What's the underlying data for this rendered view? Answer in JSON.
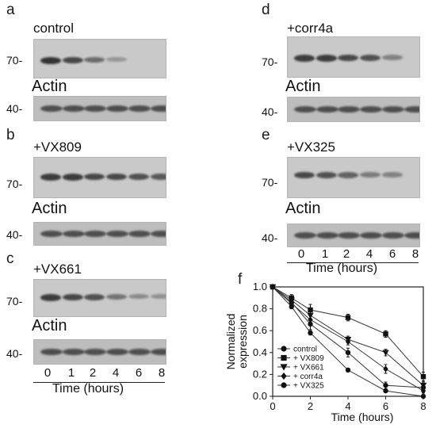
{
  "panels": {
    "a": {
      "letter": "a",
      "label": "control",
      "bands": [
        0.95,
        0.85,
        0.65,
        0.35,
        0.0,
        0.0
      ]
    },
    "b": {
      "letter": "b",
      "label": "+VX809",
      "bands": [
        0.9,
        0.9,
        0.85,
        0.85,
        0.8,
        0.75
      ]
    },
    "c": {
      "letter": "c",
      "label": "+VX661",
      "bands": [
        0.9,
        0.85,
        0.8,
        0.6,
        0.45,
        0.4
      ]
    },
    "d": {
      "letter": "d",
      "label": "+corr4a",
      "bands": [
        0.9,
        0.9,
        0.85,
        0.8,
        0.5,
        0.0
      ]
    },
    "e": {
      "letter": "e",
      "label": "+VX325",
      "bands": [
        0.85,
        0.8,
        0.7,
        0.55,
        0.5,
        0.0
      ]
    }
  },
  "actin_label": "Actin",
  "mw_70": "70-",
  "mw_40": "40-",
  "time_ticks": [
    "0",
    "1",
    "2",
    "4",
    "6",
    "8"
  ],
  "time_axis_label": "Time (hours)",
  "chart_letter": "f",
  "chart_data": {
    "type": "line",
    "xlabel": "Time (hours)",
    "ylabel": "Normalized expression",
    "xlim": [
      0,
      8
    ],
    "ylim": [
      0,
      1.0
    ],
    "x": [
      0,
      1,
      2,
      4,
      6,
      8
    ],
    "xticks": [
      "0",
      "2",
      "4",
      "6",
      "8"
    ],
    "yticks": [
      "0.0",
      "0.2",
      "0.4",
      "0.6",
      "0.8",
      "1.0"
    ],
    "legend_position": "bottom-left",
    "series": [
      {
        "name": "control",
        "marker": "circle",
        "values": [
          1.0,
          0.82,
          0.58,
          0.24,
          0.05,
          0.0
        ],
        "err": [
          0.0,
          0.02,
          0.02,
          0.01,
          0.01,
          0.0
        ]
      },
      {
        "name": "+ VX809",
        "marker": "square",
        "values": [
          1.0,
          0.9,
          0.79,
          0.72,
          0.57,
          0.18
        ],
        "err": [
          0.0,
          0.03,
          0.05,
          0.03,
          0.03,
          0.04
        ]
      },
      {
        "name": "+ VX661",
        "marker": "triangle-down",
        "values": [
          1.0,
          0.88,
          0.74,
          0.52,
          0.4,
          0.1
        ],
        "err": [
          0.0,
          0.03,
          0.04,
          0.03,
          0.03,
          0.03
        ]
      },
      {
        "name": "+ corr4a",
        "marker": "diamond",
        "values": [
          1.0,
          0.85,
          0.7,
          0.5,
          0.25,
          0.05
        ],
        "err": [
          0.0,
          0.03,
          0.04,
          0.03,
          0.04,
          0.02
        ]
      },
      {
        "name": "+ VX325",
        "marker": "circle",
        "values": [
          1.0,
          0.86,
          0.66,
          0.4,
          0.1,
          0.08
        ],
        "err": [
          0.0,
          0.03,
          0.05,
          0.04,
          0.03,
          0.03
        ]
      }
    ]
  }
}
